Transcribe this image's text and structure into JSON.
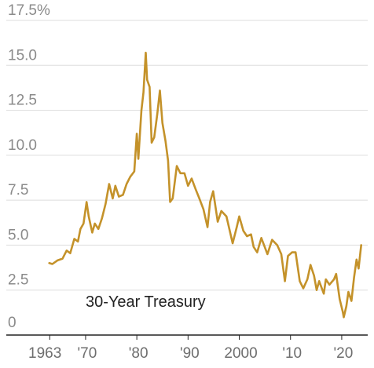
{
  "chart_data": {
    "type": "line",
    "series": [
      {
        "name": "30-Year Treasury",
        "color": "#C4922A",
        "points": [
          [
            1962.9,
            4.0
          ],
          [
            1963.5,
            3.95
          ],
          [
            1964.5,
            4.15
          ],
          [
            1965.5,
            4.25
          ],
          [
            1966.3,
            4.7
          ],
          [
            1967.0,
            4.55
          ],
          [
            1967.8,
            5.35
          ],
          [
            1968.5,
            5.2
          ],
          [
            1969.0,
            5.9
          ],
          [
            1969.6,
            6.2
          ],
          [
            1970.2,
            7.4
          ],
          [
            1970.6,
            6.6
          ],
          [
            1971.3,
            5.7
          ],
          [
            1971.8,
            6.2
          ],
          [
            1972.5,
            5.9
          ],
          [
            1973.2,
            6.5
          ],
          [
            1973.9,
            7.3
          ],
          [
            1974.6,
            8.4
          ],
          [
            1975.3,
            7.6
          ],
          [
            1975.8,
            8.3
          ],
          [
            1976.5,
            7.7
          ],
          [
            1977.3,
            7.8
          ],
          [
            1978.0,
            8.4
          ],
          [
            1978.7,
            8.8
          ],
          [
            1979.5,
            9.1
          ],
          [
            1980.0,
            11.2
          ],
          [
            1980.3,
            9.8
          ],
          [
            1980.9,
            12.5
          ],
          [
            1981.3,
            13.5
          ],
          [
            1981.75,
            15.7
          ],
          [
            1982.0,
            14.2
          ],
          [
            1982.5,
            13.8
          ],
          [
            1982.9,
            10.7
          ],
          [
            1983.4,
            11.0
          ],
          [
            1984.0,
            12.3
          ],
          [
            1984.5,
            13.6
          ],
          [
            1985.0,
            11.8
          ],
          [
            1985.6,
            10.8
          ],
          [
            1986.1,
            9.7
          ],
          [
            1986.5,
            7.4
          ],
          [
            1987.0,
            7.6
          ],
          [
            1987.8,
            9.4
          ],
          [
            1988.5,
            9.0
          ],
          [
            1989.3,
            9.0
          ],
          [
            1990.0,
            8.3
          ],
          [
            1990.7,
            8.7
          ],
          [
            1991.5,
            8.1
          ],
          [
            1992.2,
            7.6
          ],
          [
            1993.0,
            7.0
          ],
          [
            1993.8,
            6.0
          ],
          [
            1994.3,
            7.4
          ],
          [
            1994.9,
            8.0
          ],
          [
            1995.8,
            6.3
          ],
          [
            1996.5,
            6.9
          ],
          [
            1997.5,
            6.6
          ],
          [
            1998.7,
            5.1
          ],
          [
            1999.5,
            6.0
          ],
          [
            2000.0,
            6.6
          ],
          [
            2000.8,
            5.8
          ],
          [
            2001.5,
            5.5
          ],
          [
            2002.3,
            5.6
          ],
          [
            2002.8,
            4.9
          ],
          [
            2003.5,
            4.6
          ],
          [
            2004.3,
            5.4
          ],
          [
            2005.5,
            4.5
          ],
          [
            2006.4,
            5.3
          ],
          [
            2007.4,
            5.0
          ],
          [
            2008.2,
            4.5
          ],
          [
            2008.9,
            3.0
          ],
          [
            2009.5,
            4.4
          ],
          [
            2010.3,
            4.6
          ],
          [
            2011.0,
            4.6
          ],
          [
            2011.8,
            3.0
          ],
          [
            2012.5,
            2.6
          ],
          [
            2013.3,
            3.1
          ],
          [
            2013.9,
            3.9
          ],
          [
            2014.6,
            3.3
          ],
          [
            2015.1,
            2.5
          ],
          [
            2015.6,
            3.0
          ],
          [
            2016.5,
            2.3
          ],
          [
            2016.9,
            3.1
          ],
          [
            2017.6,
            2.8
          ],
          [
            2018.5,
            3.1
          ],
          [
            2018.9,
            3.4
          ],
          [
            2019.6,
            2.0
          ],
          [
            2020.2,
            1.3
          ],
          [
            2020.4,
            0.99
          ],
          [
            2020.9,
            1.6
          ],
          [
            2021.3,
            2.4
          ],
          [
            2021.9,
            1.9
          ],
          [
            2022.4,
            3.2
          ],
          [
            2022.9,
            4.2
          ],
          [
            2023.3,
            3.7
          ],
          [
            2023.8,
            5.0
          ]
        ]
      }
    ],
    "xlim": [
      1962.8,
      2024.0
    ],
    "ylim": [
      0,
      17.5
    ],
    "y_ticks": [
      {
        "value": 0,
        "label": "0"
      },
      {
        "value": 2.5,
        "label": "2.5"
      },
      {
        "value": 5,
        "label": "5.0"
      },
      {
        "value": 7.5,
        "label": "7.5"
      },
      {
        "value": 10,
        "label": "10.0"
      },
      {
        "value": 12.5,
        "label": "12.5"
      },
      {
        "value": 15,
        "label": "15.0"
      },
      {
        "value": 17.5,
        "label": "17.5%"
      }
    ],
    "x_ticks": [
      {
        "value": 1963,
        "label": "1963"
      },
      {
        "value": 1970,
        "label": "'70"
      },
      {
        "value": 1980,
        "label": "'80"
      },
      {
        "value": 1990,
        "label": "'90"
      },
      {
        "value": 2000,
        "label": "2000"
      },
      {
        "value": 2010,
        "label": "'10"
      },
      {
        "value": 2020,
        "label": "'20"
      }
    ],
    "grid": "horizontal",
    "series_label": "30-Year Treasury",
    "axis_color": "#222222",
    "grid_color": "#dddddd"
  }
}
